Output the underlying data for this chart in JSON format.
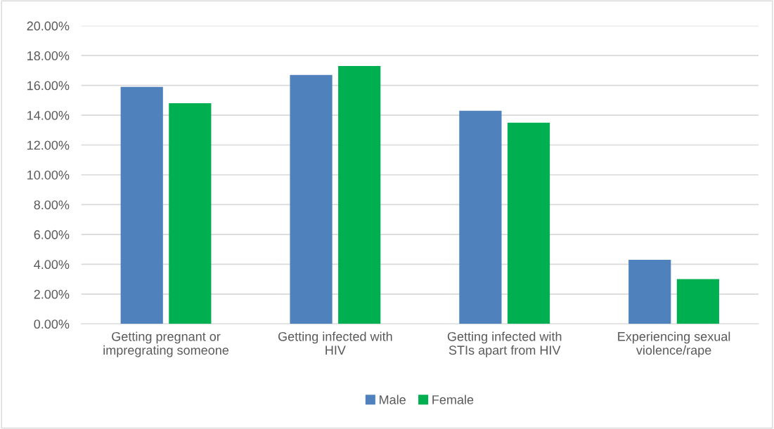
{
  "chart_data": {
    "type": "bar",
    "categories": [
      "Getting pregnant or\nimpregrating someone",
      "Getting infected with\nHIV",
      "Getting infected with\nSTIs apart from HIV",
      "Experiencing sexual\nviolence/rape"
    ],
    "series": [
      {
        "name": "Male",
        "color": "#4f81bd",
        "values": [
          15.9,
          16.7,
          14.3,
          4.3
        ]
      },
      {
        "name": "Female",
        "color": "#00b050",
        "values": [
          14.8,
          17.3,
          13.5,
          3.0
        ]
      }
    ],
    "ylim": [
      0,
      20
    ],
    "yticks": [
      {
        "value": 0,
        "label": "0.00%"
      },
      {
        "value": 2,
        "label": "2.00%"
      },
      {
        "value": 4,
        "label": "4.00%"
      },
      {
        "value": 6,
        "label": "6.00%"
      },
      {
        "value": 8,
        "label": "8.00%"
      },
      {
        "value": 10,
        "label": "10.00%"
      },
      {
        "value": 12,
        "label": "12.00%"
      },
      {
        "value": 14,
        "label": "14.00%"
      },
      {
        "value": 16,
        "label": "16.00%"
      },
      {
        "value": 18,
        "label": "18.00%"
      },
      {
        "value": 20,
        "label": "20.00%"
      }
    ],
    "grid": "y",
    "legend": "bottom"
  }
}
